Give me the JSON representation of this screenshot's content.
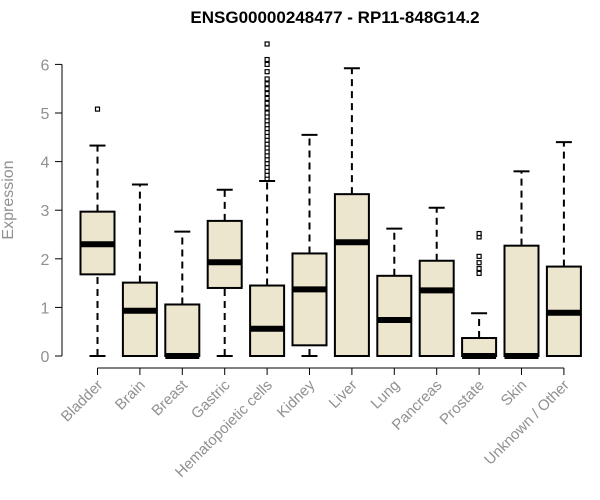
{
  "chart_data": {
    "type": "boxplot",
    "title": "ENSG00000248477 - RP11-848G14.2",
    "ylabel": "Expression",
    "xlabel": "",
    "ylim": [
      0,
      6.5
    ],
    "yticks": [
      0,
      1,
      2,
      3,
      4,
      5,
      6
    ],
    "grid": false,
    "box_color": "#ede6ce",
    "line_color": "#000000",
    "axis_label_color": "#909090",
    "categories": [
      "Bladder",
      "Brain",
      "Breast",
      "Gastric",
      "Hematopoietic cells",
      "Kidney",
      "Liver",
      "Lung",
      "Pancreas",
      "Prostate",
      "Skin",
      "Unknown / Other"
    ],
    "boxes": [
      {
        "category": "Bladder",
        "whisker_low": 0,
        "q1": 1.68,
        "median": 2.3,
        "q3": 2.97,
        "whisker_high": 4.33,
        "outliers": [
          5.08
        ]
      },
      {
        "category": "Brain",
        "whisker_low": 0,
        "q1": 0,
        "median": 0.93,
        "q3": 1.51,
        "whisker_high": 3.53,
        "outliers": []
      },
      {
        "category": "Breast",
        "whisker_low": 0,
        "q1": 0,
        "median": 0,
        "q3": 1.06,
        "whisker_high": 2.56,
        "outliers": []
      },
      {
        "category": "Gastric",
        "whisker_low": 0,
        "q1": 1.4,
        "median": 1.93,
        "q3": 2.78,
        "whisker_high": 3.42,
        "outliers": []
      },
      {
        "category": "Hematopoietic cells",
        "whisker_low": 0,
        "q1": 0,
        "median": 0.56,
        "q3": 1.45,
        "whisker_high": 3.6,
        "outliers": [
          3.65,
          3.72,
          3.8,
          3.88,
          3.96,
          4.04,
          4.12,
          4.2,
          4.28,
          4.36,
          4.44,
          4.52,
          4.6,
          4.68,
          4.76,
          4.84,
          4.92,
          5.0,
          5.1,
          5.2,
          5.3,
          5.4,
          5.5,
          5.6,
          5.7,
          5.85,
          6.0,
          6.1,
          6.42
        ]
      },
      {
        "category": "Kidney",
        "whisker_low": 0,
        "q1": 0.22,
        "median": 1.37,
        "q3": 2.11,
        "whisker_high": 4.55,
        "outliers": []
      },
      {
        "category": "Liver",
        "whisker_low": 0,
        "q1": 0,
        "median": 2.34,
        "q3": 3.33,
        "whisker_high": 5.92,
        "outliers": []
      },
      {
        "category": "Lung",
        "whisker_low": 0,
        "q1": 0,
        "median": 0.74,
        "q3": 1.65,
        "whisker_high": 2.62,
        "outliers": []
      },
      {
        "category": "Pancreas",
        "whisker_low": 0,
        "q1": 0,
        "median": 1.35,
        "q3": 1.96,
        "whisker_high": 3.05,
        "outliers": []
      },
      {
        "category": "Prostate",
        "whisker_low": 0,
        "q1": 0,
        "median": 0,
        "q3": 0.37,
        "whisker_high": 0.88,
        "outliers": [
          1.7,
          1.8,
          1.92,
          2.05,
          2.45,
          2.52
        ]
      },
      {
        "category": "Skin",
        "whisker_low": 0,
        "q1": 0,
        "median": 0,
        "q3": 2.27,
        "whisker_high": 3.8,
        "outliers": []
      },
      {
        "category": "Unknown / Other",
        "whisker_low": 0,
        "q1": 0,
        "median": 0.89,
        "q3": 1.84,
        "whisker_high": 4.4,
        "outliers": []
      }
    ]
  }
}
